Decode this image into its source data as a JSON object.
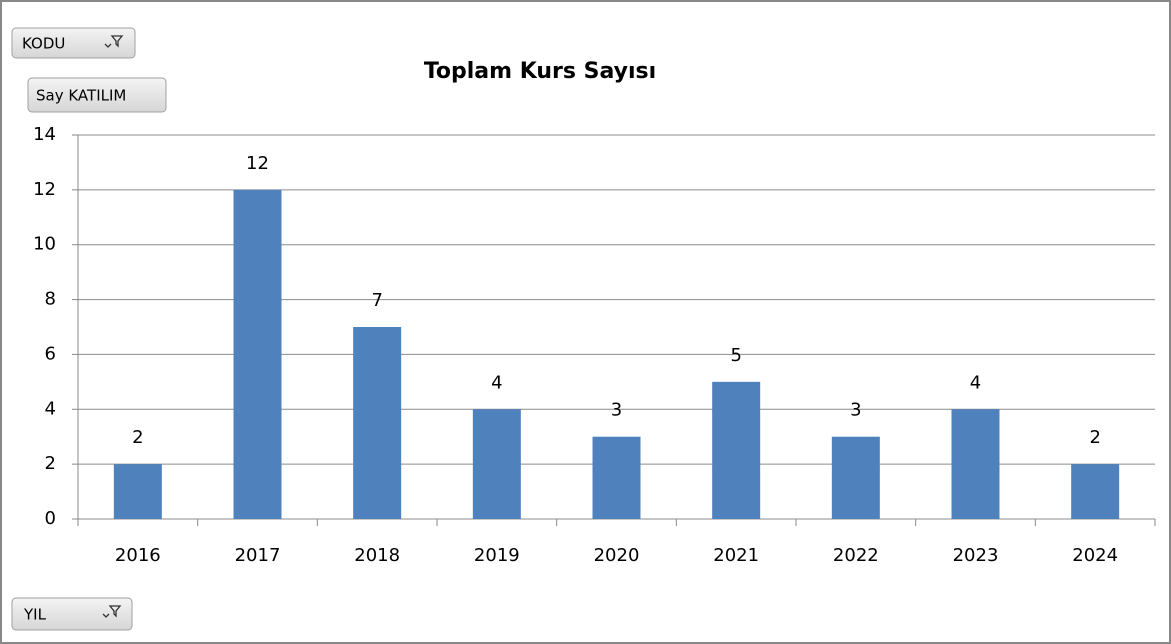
{
  "chart_data": {
    "type": "bar",
    "title": "Toplam Kurs Sayısı",
    "report_filter_button": "KODU",
    "value_field_button": "Say KATILIM",
    "axis_field_button": "YIL",
    "categories": [
      "2016",
      "2017",
      "2018",
      "2019",
      "2020",
      "2021",
      "2022",
      "2023",
      "2024"
    ],
    "values": [
      2,
      12,
      7,
      4,
      3,
      5,
      3,
      4,
      2
    ],
    "color": "#4f81bd",
    "ylim": [
      0,
      14
    ],
    "yticks": [
      0,
      2,
      4,
      6,
      8,
      10,
      12,
      14
    ],
    "grid": true
  }
}
